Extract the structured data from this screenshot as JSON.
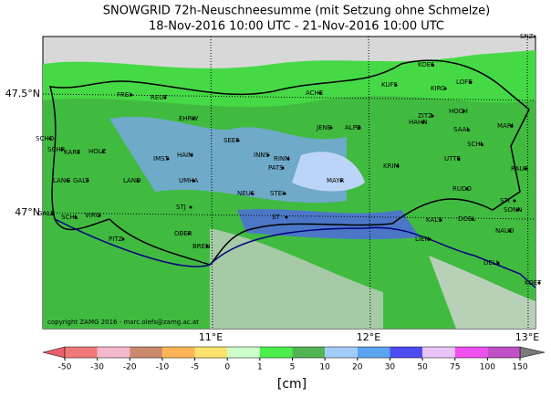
{
  "title": [
    "SNOWGRID 72h-Neuschneesumme (mit Setzung ohne Schmelze)",
    "18-Nov-2016 10:00 UTC - 21-Nov-2016 10:00 UTC"
  ],
  "map": {
    "lat_labels": [
      "47.5°N",
      "47°N"
    ],
    "lon_labels": [
      "11°E",
      "12°E",
      "13°E"
    ],
    "stations": [
      "SNZ",
      "KOES",
      "KUFS",
      "KIRC",
      "LOFE",
      "ACHE",
      "FREI",
      "REUT",
      "EHRW",
      "JENB",
      "ALPB",
      "ZITZ",
      "HAHN",
      "HOCH",
      "MARI",
      "SAAL",
      "SCHL",
      "SEEF",
      "INNS",
      "RINN",
      "PATS",
      "SCHO",
      "SCHR",
      "KART",
      "HOLZ",
      "IMST",
      "HAIN",
      "KRIM",
      "UTTE",
      "RAUR",
      "LANG",
      "GALT",
      "LAND",
      "UMHA",
      "NEUS",
      "STEI",
      "MAYR",
      "RUDO",
      "SONN",
      "STI",
      "GALZ",
      "SCHL",
      "VIRG",
      "KALS",
      "DOEL",
      "NAUD",
      "PITZ",
      "OBER",
      "BREN",
      "ST",
      "STJ",
      "LIEN",
      "DELL",
      "KOET"
    ],
    "copyright": "copyright ZAMG 2016 - marc.olefs@zamg.ac.at"
  },
  "colorbar": {
    "ticks": [
      -50,
      -30,
      -20,
      -10,
      -5,
      0,
      1,
      5,
      10,
      20,
      30,
      50,
      75,
      100,
      150
    ],
    "colors": [
      "#f07878",
      "#f4b8cc",
      "#cc8a6c",
      "#fcb457",
      "#fbe46c",
      "#ccffcc",
      "#4cee4c",
      "#52b552",
      "#a4ccf8",
      "#5aa4f2",
      "#4c4cf0",
      "#e8c4f8",
      "#f050f0",
      "#c050c4"
    ],
    "under_color": "#e8606a",
    "over_color": "#7a7a7a",
    "unit": "[cm]"
  }
}
